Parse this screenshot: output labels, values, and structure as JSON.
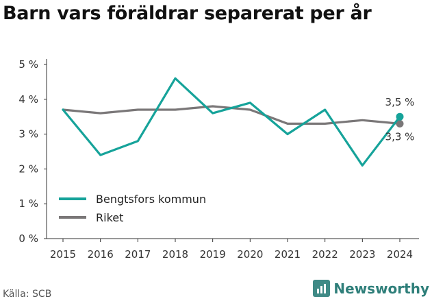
{
  "title": "Barn vars föräldrar separerat per år",
  "source": "Källa: SCB",
  "brand": "Newsworthy",
  "colors": {
    "primary": "#16a39a",
    "secondary": "#7a7778",
    "brand": "#3f8a86"
  },
  "chart_data": {
    "type": "line",
    "title": "Barn vars föräldrar separerat per år",
    "x": [
      2015,
      2016,
      2017,
      2018,
      2019,
      2020,
      2021,
      2022,
      2023,
      2024
    ],
    "ylim": [
      0,
      5
    ],
    "yticks": [
      "0 %",
      "1 %",
      "2 %",
      "3 %",
      "4 %",
      "5 %"
    ],
    "grid": false,
    "legend_position": "bottom-left",
    "series": [
      {
        "name": "Bengtsfors kommun",
        "values": [
          3.7,
          2.4,
          2.8,
          4.6,
          3.6,
          3.9,
          3.0,
          3.7,
          2.1,
          3.5
        ],
        "end_label": "3,5 %"
      },
      {
        "name": "Riket",
        "values": [
          3.7,
          3.6,
          3.7,
          3.7,
          3.8,
          3.7,
          3.3,
          3.3,
          3.4,
          3.3
        ],
        "end_label": "3,3 %"
      }
    ]
  }
}
